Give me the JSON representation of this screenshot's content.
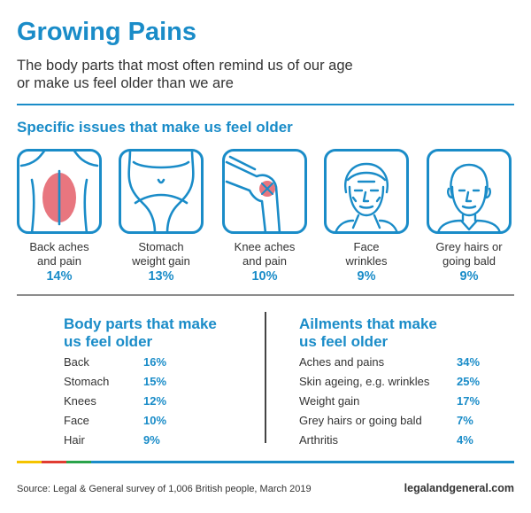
{
  "title": "Growing Pains",
  "subtitle_line1": "The body parts that most often remind us of our age",
  "subtitle_line2": "or make us feel older than we are",
  "specific_heading": "Specific issues that make us feel older",
  "issues": [
    {
      "label1": "Back aches",
      "label2": "and pain",
      "percent": "14%",
      "icon": "back-pain-icon"
    },
    {
      "label1": "Stomach",
      "label2": "weight gain",
      "percent": "13%",
      "icon": "stomach-icon"
    },
    {
      "label1": "Knee aches",
      "label2": "and pain",
      "percent": "10%",
      "icon": "knee-pain-icon"
    },
    {
      "label1": "Face",
      "label2": "wrinkles",
      "percent": "9%",
      "icon": "wrinkled-face-icon"
    },
    {
      "label1": "Grey hairs or",
      "label2": "going bald",
      "percent": "9%",
      "icon": "balding-man-icon"
    }
  ],
  "body_parts": {
    "heading1": "Body parts that make",
    "heading2": "us feel older",
    "rows": [
      {
        "label": "Back",
        "value": "16%"
      },
      {
        "label": "Stomach",
        "value": "15%"
      },
      {
        "label": "Knees",
        "value": "12%"
      },
      {
        "label": "Face",
        "value": "10%"
      },
      {
        "label": "Hair",
        "value": "9%"
      }
    ]
  },
  "ailments": {
    "heading1": "Ailments that make",
    "heading2": "us feel older",
    "rows": [
      {
        "label": "Aches and pains",
        "value": "34%"
      },
      {
        "label": "Skin ageing, e.g. wrinkles",
        "value": "25%"
      },
      {
        "label": "Weight gain",
        "value": "17%"
      },
      {
        "label": "Grey hairs or going bald",
        "value": "7%"
      },
      {
        "label": "Arthritis",
        "value": "4%"
      }
    ]
  },
  "footer": {
    "source": "Source: Legal & General survey of 1,006 British people, March 2019",
    "site": "legalandgeneral.com"
  },
  "colors": {
    "accent": "#1a8cc8",
    "pain_highlight": "#e8767f",
    "bar_yellow": "#f5c400",
    "bar_red": "#e03c31",
    "bar_green": "#2aa34a",
    "bar_blue": "#1a8cc8"
  }
}
